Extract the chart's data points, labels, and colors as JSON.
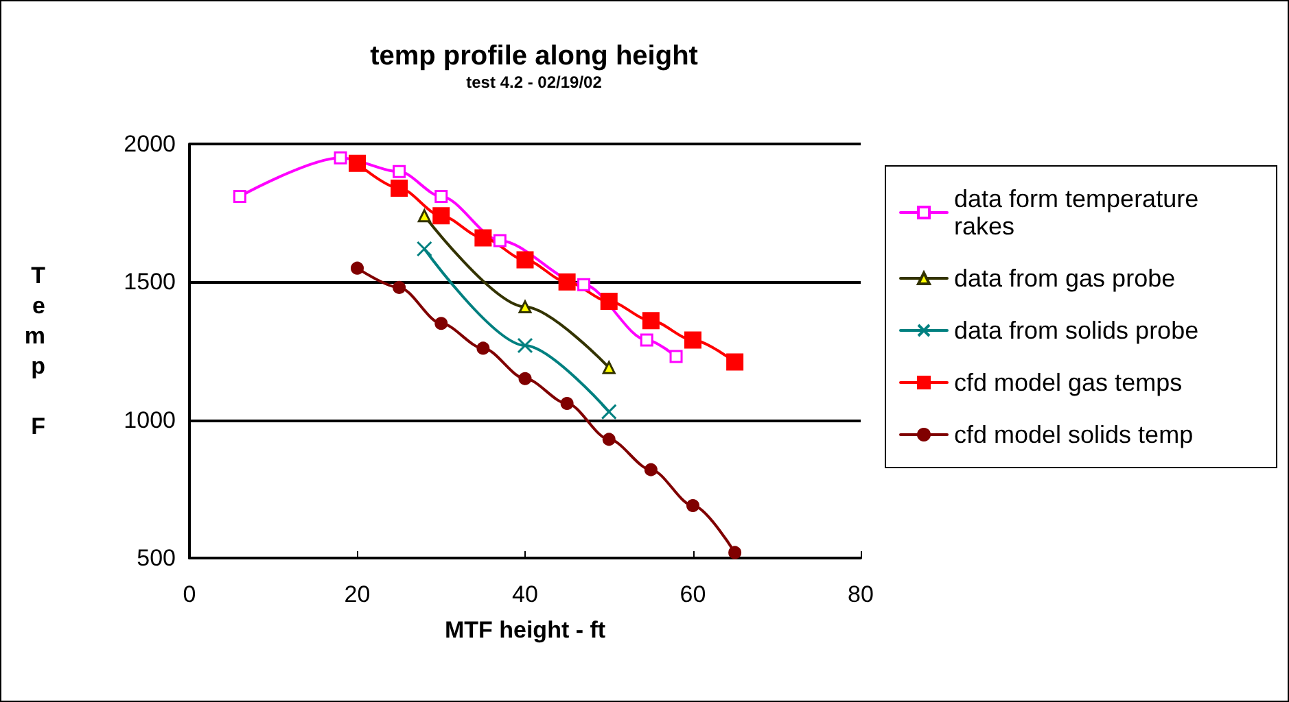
{
  "chart_data": {
    "type": "line",
    "title": "temp profile along height",
    "subtitle": "test 4.2 - 02/19/02",
    "xlabel": "MTF height - ft",
    "ylabel": "Temp F",
    "xlim": [
      0,
      80
    ],
    "xticks": [
      0,
      20,
      40,
      60,
      80
    ],
    "ylim": [
      500,
      2000
    ],
    "yticks": [
      500,
      1000,
      1500,
      2000
    ],
    "grid": "y",
    "legend": "right",
    "series": [
      {
        "name": "data form temperature rakes",
        "color": "#ff00ff",
        "marker": "square",
        "x": [
          6,
          18,
          25,
          30,
          37,
          47,
          54.5,
          58
        ],
        "values": [
          1810,
          1950,
          1900,
          1810,
          1650,
          1490,
          1290,
          1230
        ]
      },
      {
        "name": "data from gas probe",
        "color": "#333300",
        "marker": "triangle",
        "x": [
          28,
          40,
          50
        ],
        "values": [
          1740,
          1410,
          1190
        ]
      },
      {
        "name": "data from solids probe",
        "color": "#008080",
        "marker": "cross",
        "x": [
          28,
          40,
          50
        ],
        "values": [
          1620,
          1270,
          1030
        ]
      },
      {
        "name": "cfd model gas temps",
        "color": "#ff0000",
        "marker": "square",
        "x": [
          20,
          25,
          30,
          35,
          40,
          45,
          50,
          55,
          60,
          65
        ],
        "values": [
          1930,
          1840,
          1740,
          1660,
          1580,
          1500,
          1430,
          1360,
          1290,
          1210
        ]
      },
      {
        "name": "cfd model solids temp",
        "color": "#800000",
        "marker": "circle",
        "x": [
          20,
          25,
          30,
          35,
          40,
          45,
          50,
          55,
          60,
          65
        ],
        "values": [
          1550,
          1480,
          1350,
          1260,
          1150,
          1060,
          930,
          820,
          690,
          520
        ]
      }
    ]
  }
}
